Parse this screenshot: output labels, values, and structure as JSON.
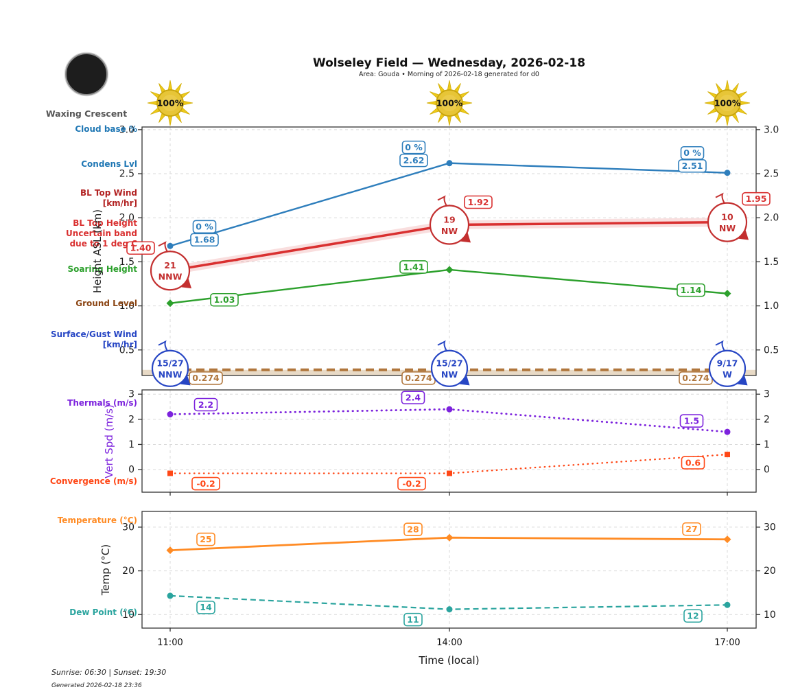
{
  "header": {
    "title": "Wolseley Field — Wednesday, 2026-02-18",
    "subtitle": "Area: Gouda • Morning of 2026-02-18 generated for d0",
    "moon_phase": "Waxing Crescent"
  },
  "solar": {
    "percent_labels": [
      "100%",
      "100%",
      "100%"
    ]
  },
  "row_labels": {
    "cloud_base": "Cloud base %",
    "condens": "Condens Lvl",
    "bl_top_wind_1": "BL Top Wind",
    "bl_top_wind_2": "[km/hr]",
    "bl_top_height_1": "BL Top Height",
    "bl_top_height_2": "Uncertain band",
    "bl_top_height_3": "due to 1 deg C",
    "soaring": "Soaring Height",
    "ground": "Ground Level",
    "surface_wind_1": "Surface/Gust Wind",
    "surface_wind_2": "[km/hr]",
    "thermals": "Thermals (m/s)",
    "convergence": "Convergence (m/s)",
    "temperature": "Temperature (°C)",
    "dew_point": "Dew Point (°C)"
  },
  "xaxis": {
    "label": "Time (local)",
    "ticks": [
      "11:00",
      "14:00",
      "17:00"
    ]
  },
  "footer": {
    "sun_times": "Sunrise: 06:30 | Sunset: 19:30",
    "generated": "Generated 2026-02-18 23:36"
  },
  "chart_data": [
    {
      "type": "line",
      "ylabel": "Height ASL (km)",
      "x": [
        "11:00",
        "14:00",
        "17:00"
      ],
      "ylim": [
        0.21,
        3.03
      ],
      "grid": true,
      "yticks": [
        {
          "v": 0.5,
          "t": "0.5"
        },
        {
          "v": 1.0,
          "t": "1.0"
        },
        {
          "v": 1.5,
          "t": "1.5"
        },
        {
          "v": 2.0,
          "t": "2.0"
        },
        {
          "v": 2.5,
          "t": "2.5"
        },
        {
          "v": 3.0,
          "t": "3.0"
        }
      ],
      "series": [
        {
          "name": "Condensation Level (cloud base)",
          "color": "#2e7ebc",
          "line": "solid",
          "width": 2.4,
          "marker": "circle",
          "values": [
            1.68,
            2.62,
            2.51
          ],
          "value_labels": [
            "1.68",
            "2.62",
            "2.51"
          ],
          "pct_labels": [
            "0 %",
            "0 %",
            "0 %"
          ],
          "pct_dy": -19,
          "label_offsets": [
            [
              50,
              -9
            ],
            [
              -52,
              -4
            ],
            [
              -51,
              -10
            ]
          ]
        },
        {
          "name": "BL Top Height",
          "color": "#d93030",
          "line": "solid",
          "width": 3.5,
          "band": 0.05,
          "band_opacity": 0.16,
          "values": [
            1.4,
            1.92,
            1.95
          ],
          "value_labels": [
            "1.40",
            "1.92",
            "1.95"
          ],
          "label_offsets": [
            [
              -43,
              -33
            ],
            [
              42,
              -33
            ],
            [
              42,
              -34
            ]
          ],
          "wind_badges": {
            "r": 28,
            "color": "#c32f2f",
            "items": [
              [
                "21",
                "NNW"
              ],
              [
                "19",
                "NW"
              ],
              [
                "10",
                "NW"
              ]
            ]
          }
        },
        {
          "name": "Soaring Height",
          "color": "#2ca02c",
          "line": "solid",
          "width": 2.4,
          "marker": "diamond",
          "values": [
            1.03,
            1.41,
            1.14
          ],
          "value_labels": [
            "1.03",
            "1.41",
            "1.14"
          ],
          "label_offsets": [
            [
              79,
              -5
            ],
            [
              -52,
              -4
            ],
            [
              -53,
              -5
            ]
          ]
        },
        {
          "name": "Ground Level",
          "color": "#b0763c",
          "line": "dashed-thick",
          "width": 4,
          "fill_below": "#d6bc97",
          "values": [
            0.274,
            0.274,
            0.274
          ],
          "value_labels": [
            "0.274",
            "0.274",
            "0.274"
          ],
          "label_offsets": [
            [
              52,
              12
            ],
            [
              -45,
              12
            ],
            [
              -46,
              12
            ]
          ]
        },
        {
          "name": "Surface/Gust Wind",
          "at_value": 0.29,
          "wind_badges": {
            "r": 26,
            "color": "#2746c4",
            "items": [
              [
                "15/27",
                "NNW"
              ],
              [
                "15/27",
                "NW"
              ],
              [
                "9/17",
                "W"
              ]
            ]
          }
        }
      ]
    },
    {
      "type": "line",
      "ylabel": "Vert Spd (m/s)",
      "x": [
        "11:00",
        "14:00",
        "17:00"
      ],
      "ylim": [
        -0.9,
        3.17
      ],
      "grid": true,
      "yticks": [
        {
          "v": 0,
          "t": "0"
        },
        {
          "v": 1,
          "t": "1"
        },
        {
          "v": 2,
          "t": "2"
        },
        {
          "v": 3,
          "t": "3"
        }
      ],
      "series": [
        {
          "name": "Thermals",
          "color": "#7c22dd",
          "line": "dotted",
          "width": 2.8,
          "marker": "circle",
          "values": [
            2.2,
            2.4,
            1.5
          ],
          "value_labels": [
            "2.2",
            "2.4",
            "1.5"
          ],
          "label_offsets": [
            [
              52,
              -14
            ],
            [
              -53,
              -17
            ],
            [
              -52,
              -16
            ]
          ]
        },
        {
          "name": "Convergence",
          "color": "#ff4716",
          "line": "dotted",
          "width": 2.4,
          "marker": "square",
          "values": [
            -0.15,
            -0.15,
            0.6
          ],
          "value_labels": [
            "-0.2",
            "-0.2",
            "0.6"
          ],
          "label_offsets": [
            [
              52,
              15
            ],
            [
              -55,
              15
            ],
            [
              -50,
              12
            ]
          ]
        }
      ]
    },
    {
      "type": "line",
      "ylabel": "Temp (°C)",
      "x": [
        "11:00",
        "14:00",
        "17:00"
      ],
      "ylim": [
        6.9,
        33.6
      ],
      "grid": true,
      "yticks": [
        {
          "v": 10,
          "t": "10"
        },
        {
          "v": 20,
          "t": "20"
        },
        {
          "v": 30,
          "t": "30"
        }
      ],
      "series": [
        {
          "name": "Temperature",
          "color": "#ff8b24",
          "line": "solid",
          "width": 2.8,
          "marker": "diamond",
          "values": [
            24.7,
            27.6,
            27.2
          ],
          "value_labels": [
            "25",
            "28",
            "27"
          ],
          "label_offsets": [
            [
              52,
              -16
            ],
            [
              -53,
              -12
            ],
            [
              -52,
              -15
            ]
          ]
        },
        {
          "name": "Dew Point",
          "color": "#2aa49e",
          "line": "dashed",
          "width": 2.2,
          "marker": "circle",
          "values": [
            14.3,
            11.2,
            12.2
          ],
          "value_labels": [
            "14",
            "11",
            "12"
          ],
          "label_offsets": [
            [
              52,
              17
            ],
            [
              -53,
              15
            ],
            [
              -50,
              16
            ]
          ]
        }
      ]
    }
  ]
}
